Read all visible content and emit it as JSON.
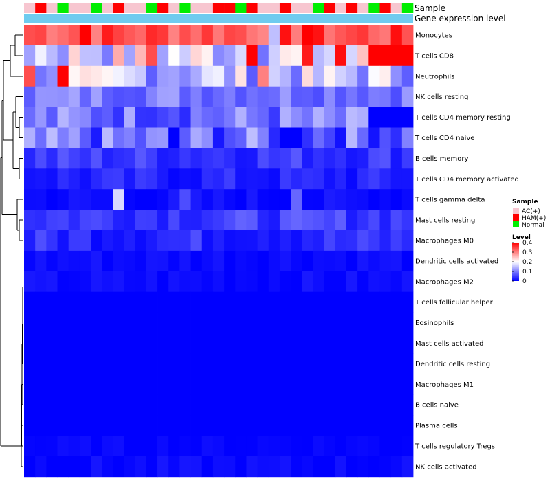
{
  "chart_data": {
    "type": "heatmap",
    "annotation_tracks": [
      {
        "name": "sample",
        "label": "Sample"
      },
      {
        "name": "gene-expression-level",
        "label": "Gene expression level"
      }
    ],
    "sample_groups": [
      "AC(+)",
      "HAM(+)",
      "Normal"
    ],
    "sample_colors": {
      "AC(+)": "#f7c6d0",
      "HAM(+)": "#ff0000",
      "Normal": "#00ee00"
    },
    "gene_expression_color": "#6fcbef",
    "samples": [
      "AC(+)",
      "HAM(+)",
      "AC(+)",
      "Normal",
      "AC(+)",
      "AC(+)",
      "Normal",
      "AC(+)",
      "HAM(+)",
      "AC(+)",
      "AC(+)",
      "Normal",
      "HAM(+)",
      "AC(+)",
      "Normal",
      "AC(+)",
      "AC(+)",
      "HAM(+)",
      "HAM(+)",
      "Normal",
      "HAM(+)",
      "AC(+)",
      "AC(+)",
      "HAM(+)",
      "AC(+)",
      "AC(+)",
      "Normal",
      "HAM(+)",
      "AC(+)",
      "HAM(+)",
      "AC(+)",
      "Normal",
      "HAM(+)",
      "AC(+)",
      "Normal"
    ],
    "rows": [
      "Monocytes",
      "T cells CD8",
      "Neutrophils",
      "NK cells resting",
      "T cells CD4 memory resting",
      "T cells CD4 naive",
      "B cells memory",
      "T cells CD4 memory activated",
      "T cells gamma delta",
      "Mast cells resting",
      "Macrophages M0",
      "Dendritic cells activated",
      "Macrophages M2",
      "T cells follicular helper",
      "Eosinophils",
      "Mast cells activated",
      "Dendritic cells resting",
      "Macrophages M1",
      "B cells naive",
      "Plasma cells",
      "T cells regulatory  Tregs",
      "NK cells activated"
    ],
    "row_means": [
      0.34,
      0.18,
      0.15,
      0.1,
      0.09,
      0.08,
      0.045,
      0.025,
      0.008,
      0.05,
      0.035,
      0.01,
      0.008,
      0.0,
      0.0,
      0.0,
      0.0,
      0.0,
      0.0,
      0.0,
      0.004,
      0.006
    ],
    "row_noise": [
      0.05,
      0.1,
      0.08,
      0.04,
      0.06,
      0.07,
      0.03,
      0.025,
      0.015,
      0.03,
      0.03,
      0.012,
      0.012,
      0.0,
      0.0,
      0.0,
      0.0,
      0.0,
      0.0,
      0.0,
      0.008,
      0.012
    ],
    "overrides": [
      {
        "row": 1,
        "col": 11,
        "value": 0.34
      },
      {
        "row": 1,
        "col": 20,
        "value": 0.4
      },
      {
        "row": 1,
        "col": 25,
        "value": 0.38
      },
      {
        "row": 1,
        "col": 28,
        "value": 0.39
      },
      {
        "row": 1,
        "col": 31,
        "value": 0.4
      },
      {
        "row": 1,
        "col": 32,
        "value": 0.4
      },
      {
        "row": 1,
        "col": 33,
        "value": 0.4
      },
      {
        "row": 1,
        "col": 34,
        "value": 0.4
      },
      {
        "row": 0,
        "col": 5,
        "value": 0.4
      },
      {
        "row": 0,
        "col": 25,
        "value": 0.4
      },
      {
        "row": 0,
        "col": 22,
        "value": 0.15
      },
      {
        "row": 2,
        "col": 0,
        "value": 0.34
      },
      {
        "row": 2,
        "col": 3,
        "value": 0.4
      },
      {
        "row": 2,
        "col": 21,
        "value": 0.3
      },
      {
        "row": 4,
        "col": 31,
        "value": 0.0
      },
      {
        "row": 4,
        "col": 32,
        "value": 0.0
      },
      {
        "row": 4,
        "col": 33,
        "value": 0.0
      },
      {
        "row": 4,
        "col": 34,
        "value": 0.0
      },
      {
        "row": 5,
        "col": 13,
        "value": 0.0
      },
      {
        "row": 5,
        "col": 23,
        "value": 0.0
      },
      {
        "row": 5,
        "col": 24,
        "value": 0.0
      },
      {
        "row": 8,
        "col": 8,
        "value": 0.17
      },
      {
        "row": 8,
        "col": 14,
        "value": 0.06
      },
      {
        "row": 8,
        "col": 24,
        "value": 0.08
      }
    ],
    "legend": {
      "sample_title": "Sample",
      "sample_items": [
        "AC(+)",
        "HAM(+)",
        "Normal"
      ],
      "level_title": "Level",
      "level_ticks": [
        "0.4",
        "0.3",
        "0.2",
        "0.1",
        "0"
      ],
      "level_tick_values": [
        0.4,
        0.3,
        0.2,
        0.1,
        0
      ],
      "level_range": [
        0,
        0.4
      ]
    },
    "color_scale": {
      "low": "#0000ff",
      "mid": "#ffffff",
      "high": "#ff0000",
      "min": 0,
      "mid_value": 0.2,
      "max": 0.4
    }
  }
}
